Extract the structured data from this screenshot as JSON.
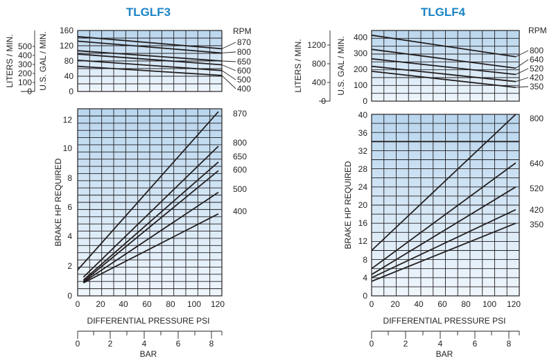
{
  "charts": [
    {
      "title": "TLGLF3",
      "flow_panel": {
        "left_axis_label": "LITERS / MIN.",
        "left_ticks": [
          "0",
          "100",
          "200",
          "300",
          "400",
          "500"
        ],
        "gal_axis_label": "U.S. GAL / MIN.",
        "gal_ticks": [
          "0",
          "40",
          "80",
          "120",
          "160"
        ],
        "rpm_header": "RPM"
      },
      "hp_panel": {
        "ylabel": "BRAKE HP REQUIRED",
        "yticks": [
          "0",
          "2",
          "4",
          "6",
          "8",
          "10",
          "12"
        ],
        "xticks": [
          "0",
          "20",
          "40",
          "60",
          "80",
          "100",
          "120"
        ]
      },
      "xlabel": "DIFFERENTIAL PRESSURE PSI",
      "bar_label": "BAR",
      "bar_ticks": [
        "0",
        "2",
        "4",
        "6",
        "8"
      ]
    },
    {
      "title": "TLGLF4",
      "flow_panel": {
        "left_axis_label": "LITERS / MIN.",
        "left_ticks": [
          "0",
          "400",
          "800",
          "1200"
        ],
        "gal_axis_label": "U.S. GAL / MIN.",
        "gal_ticks": [
          "0",
          "100",
          "200",
          "300",
          "400"
        ],
        "rpm_header": "RPM"
      },
      "hp_panel": {
        "ylabel": "BRAKE HP REQUIRED",
        "yticks": [
          "0",
          "4",
          "8",
          "12",
          "16",
          "20",
          "24",
          "28",
          "32",
          "36",
          "40"
        ],
        "xticks": [
          "0",
          "20",
          "40",
          "60",
          "80",
          "100",
          "120"
        ]
      },
      "xlabel": "DIFFERENTIAL PRESSURE PSI",
      "bar_label": "BAR",
      "bar_ticks": [
        "0",
        "2",
        "4",
        "6",
        "8"
      ]
    }
  ],
  "chart_data": [
    {
      "type": "line",
      "title": "TLGLF3",
      "panel": "flow",
      "xlabel": "",
      "ylabel": "U.S. GAL / MIN.",
      "xlim": [
        0,
        125
      ],
      "ylim": [
        0,
        160
      ],
      "series": [
        {
          "name": "870",
          "x": [
            0,
            125
          ],
          "y": [
            144,
            112
          ]
        },
        {
          "name": "800",
          "x": [
            0,
            125
          ],
          "y": [
            132,
            101
          ]
        },
        {
          "name": "650",
          "x": [
            0,
            125
          ],
          "y": [
            107,
            80
          ]
        },
        {
          "name": "600",
          "x": [
            0,
            125
          ],
          "y": [
            98,
            70
          ]
        },
        {
          "name": "500",
          "x": [
            0,
            125
          ],
          "y": [
            82,
            55
          ]
        },
        {
          "name": "400",
          "x": [
            0,
            125
          ],
          "y": [
            66,
            42
          ]
        }
      ]
    },
    {
      "type": "line",
      "title": "TLGLF3",
      "panel": "horsepower",
      "xlabel": "DIFFERENTIAL PRESSURE PSI",
      "ylabel": "BRAKE HP REQUIRED",
      "xlim": [
        0,
        125
      ],
      "ylim": [
        0,
        13
      ],
      "series": [
        {
          "name": "870",
          "x": [
            0,
            122
          ],
          "y": [
            1.8,
            12.8
          ]
        },
        {
          "name": "800",
          "x": [
            5,
            122
          ],
          "y": [
            1.3,
            10.4
          ]
        },
        {
          "name": "650",
          "x": [
            5,
            122
          ],
          "y": [
            1.1,
            9.3
          ]
        },
        {
          "name": "600",
          "x": [
            5,
            122
          ],
          "y": [
            1.0,
            8.7
          ]
        },
        {
          "name": "500",
          "x": [
            5,
            122
          ],
          "y": [
            0.95,
            7.2
          ]
        },
        {
          "name": "400",
          "x": [
            5,
            122
          ],
          "y": [
            0.9,
            5.7
          ]
        }
      ]
    },
    {
      "type": "line",
      "title": "TLGLF4",
      "panel": "flow",
      "xlabel": "",
      "ylabel": "U.S. GAL / MIN.",
      "xlim": [
        0,
        125
      ],
      "ylim": [
        0,
        450
      ],
      "series": [
        {
          "name": "800",
          "x": [
            0,
            122
          ],
          "y": [
            420,
            283
          ]
        },
        {
          "name": "640",
          "x": [
            0,
            122
          ],
          "y": [
            330,
            210
          ]
        },
        {
          "name": "520",
          "x": [
            0,
            122
          ],
          "y": [
            270,
            170
          ]
        },
        {
          "name": "420",
          "x": [
            0,
            122
          ],
          "y": [
            222,
            125
          ]
        },
        {
          "name": "350",
          "x": [
            0,
            122
          ],
          "y": [
            190,
            88
          ]
        }
      ]
    },
    {
      "type": "line",
      "title": "TLGLF4",
      "panel": "horsepower",
      "xlabel": "DIFFERENTIAL PRESSURE PSI",
      "ylabel": "BRAKE HP REQUIRED",
      "xlim": [
        0,
        125
      ],
      "ylim": [
        0,
        40
      ],
      "hline": 34,
      "series": [
        {
          "name": "800",
          "x": [
            0,
            122
          ],
          "y": [
            10,
            40
          ]
        },
        {
          "name": "640",
          "x": [
            0,
            122
          ],
          "y": [
            6,
            29.3
          ]
        },
        {
          "name": "520",
          "x": [
            0,
            122
          ],
          "y": [
            4.7,
            24
          ]
        },
        {
          "name": "420",
          "x": [
            0,
            122
          ],
          "y": [
            4,
            19
          ]
        },
        {
          "name": "350",
          "x": [
            0,
            122
          ],
          "y": [
            3.2,
            16
          ]
        }
      ]
    }
  ]
}
